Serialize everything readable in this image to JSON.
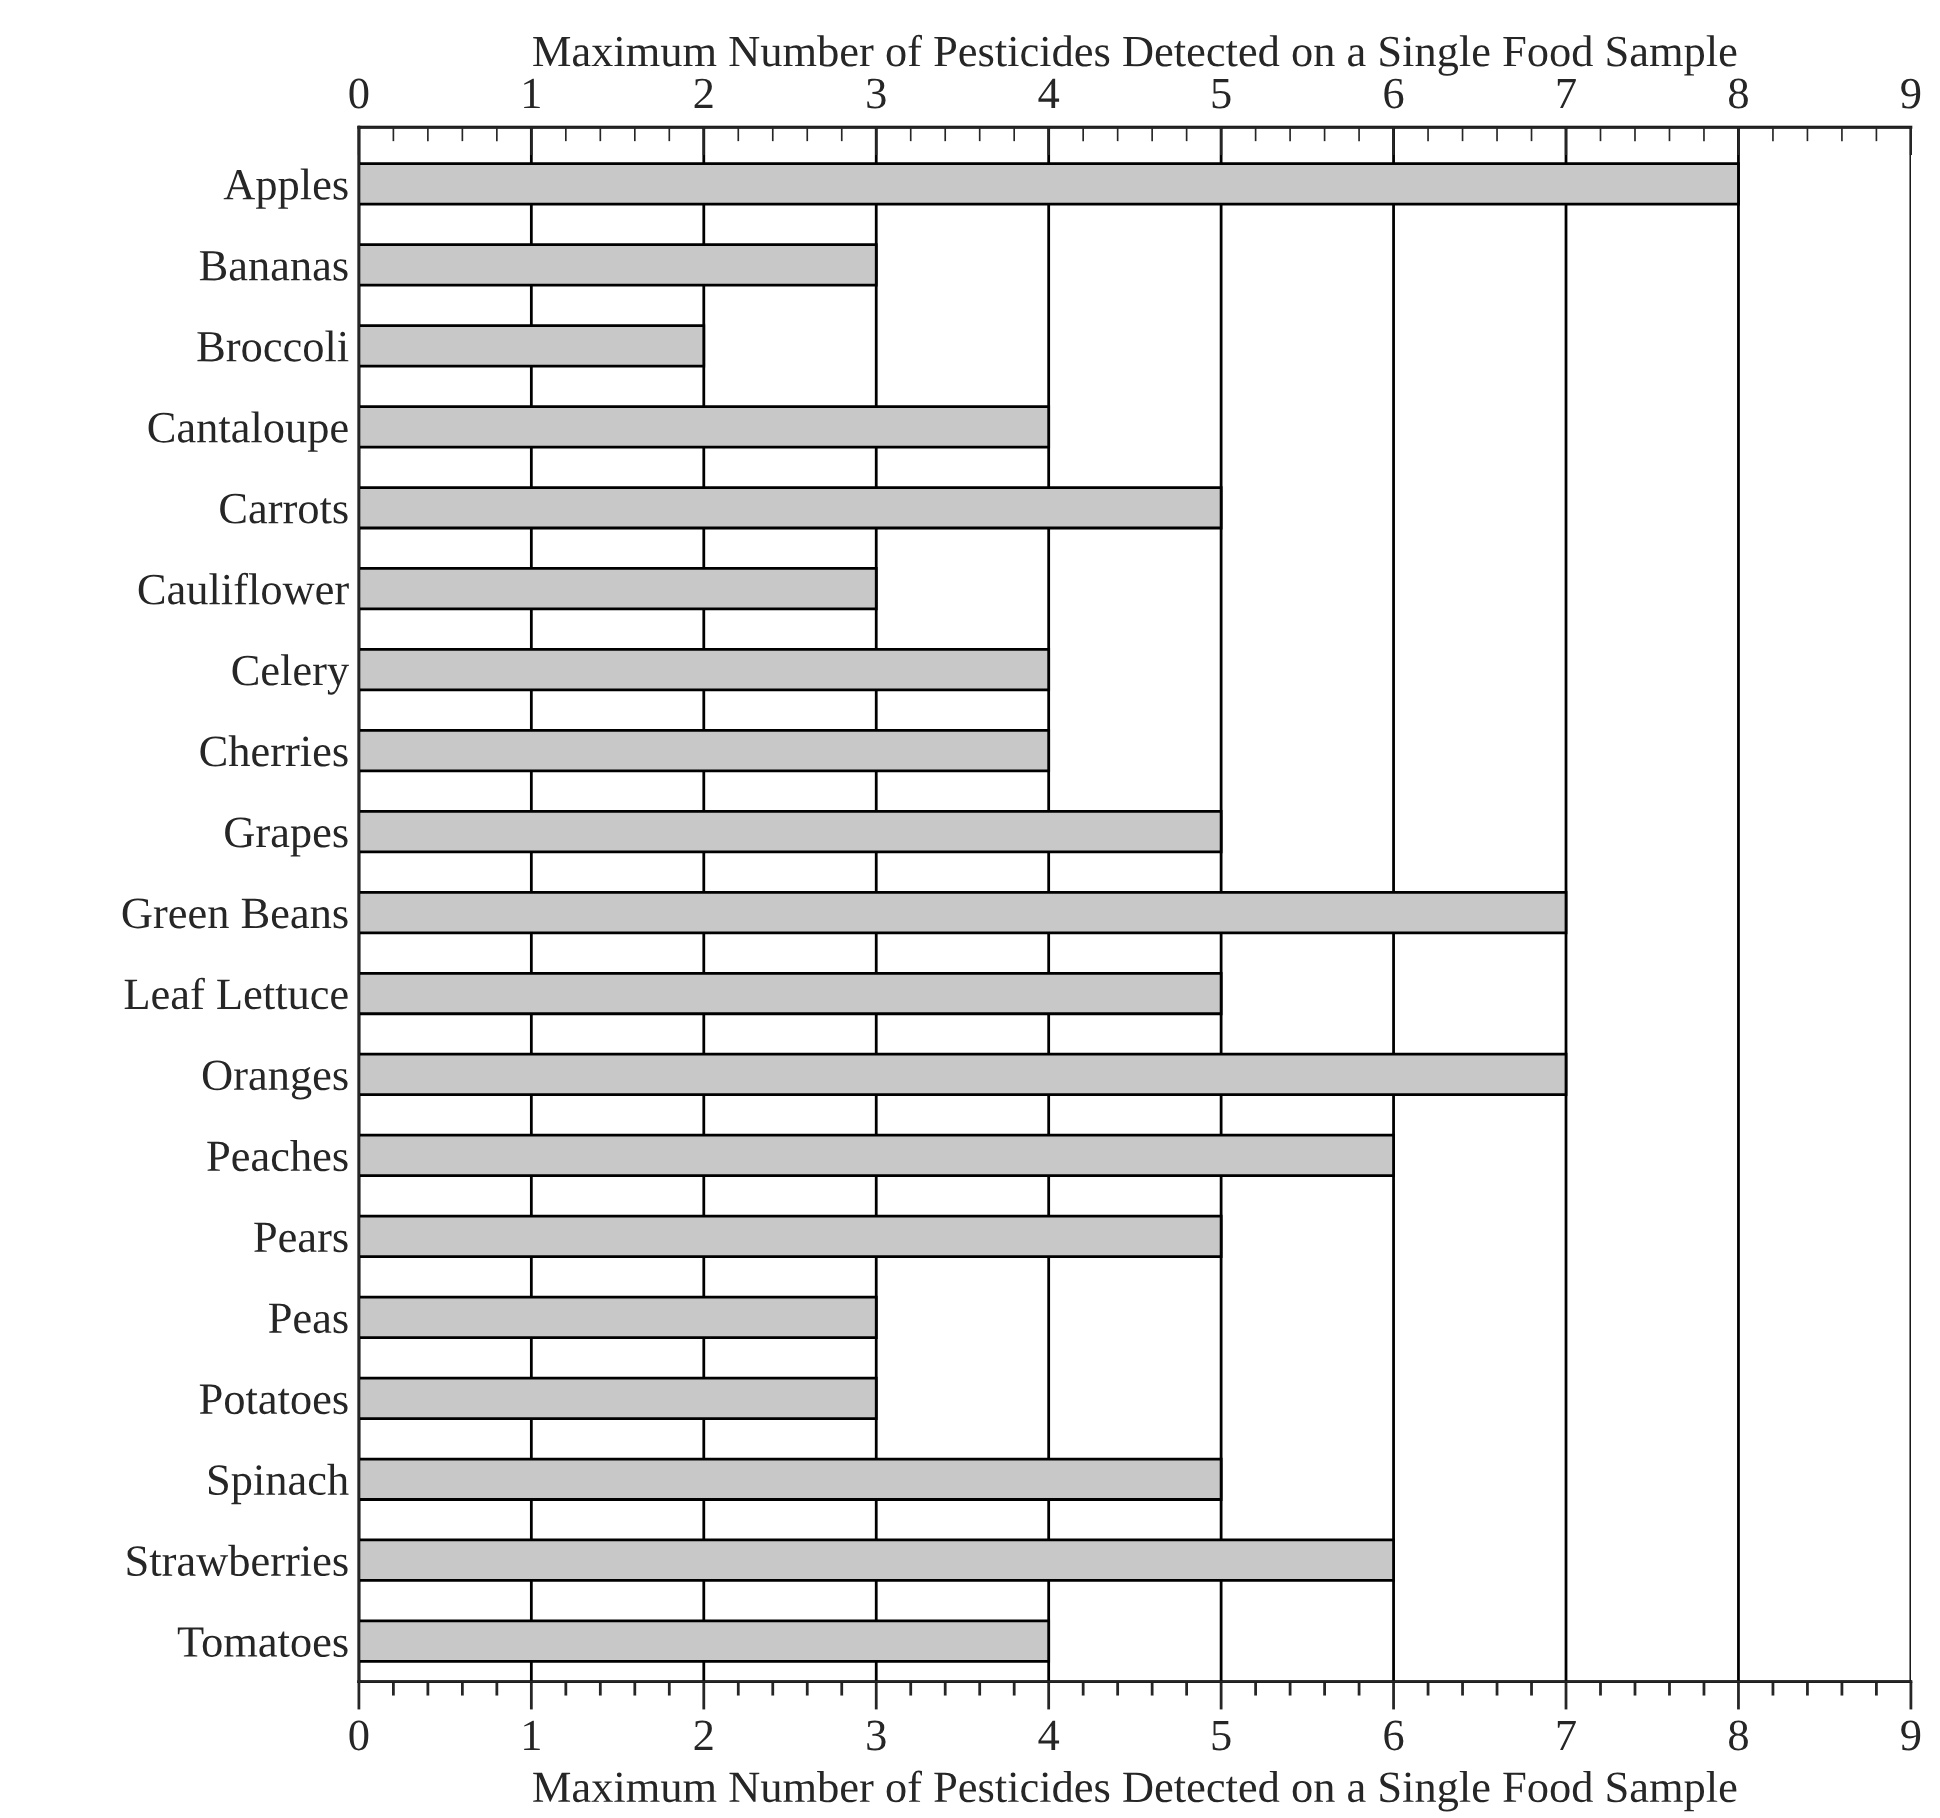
{
  "chart_data": {
    "type": "bar",
    "orientation": "horizontal",
    "categories": [
      "Apples",
      "Bananas",
      "Broccoli",
      "Cantaloupe",
      "Carrots",
      "Cauliflower",
      "Celery",
      "Cherries",
      "Grapes",
      "Green Beans",
      "Leaf Lettuce",
      "Oranges",
      "Peaches",
      "Pears",
      "Peas",
      "Potatoes",
      "Spinach",
      "Strawberries",
      "Tomatoes"
    ],
    "values": [
      8,
      3,
      2,
      4,
      5,
      3,
      4,
      4,
      5,
      7,
      5,
      7,
      6,
      5,
      3,
      3,
      5,
      6,
      4
    ],
    "color": "#c8c8c8",
    "xlabel": "Maximum Number of Pesticides Detected on a Single Food Sample",
    "x2label": "Maximum Number of Pesticides Detected on a Single Food Sample",
    "xlim": [
      0,
      9
    ],
    "xticks": [
      0,
      1,
      2,
      3,
      4,
      5,
      6,
      7,
      8,
      9
    ],
    "x2lim": [
      0,
      9
    ],
    "x2ticks": [
      0,
      1,
      2,
      3,
      4,
      5,
      6,
      7,
      8,
      9
    ],
    "grid": "x",
    "legend": false
  }
}
